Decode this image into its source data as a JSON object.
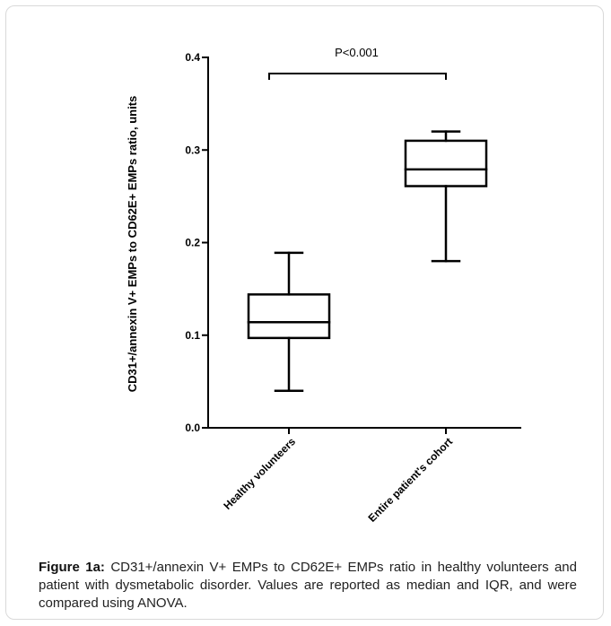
{
  "chart_data": {
    "type": "box",
    "ylabel": "CD31+/annexin V+ EMPs to CD62E+ EMPs ratio, units",
    "xlabel": "",
    "ylim": [
      0.0,
      0.4
    ],
    "yticks": [
      0.0,
      0.1,
      0.2,
      0.3,
      0.4
    ],
    "ytick_labels": [
      "0.0",
      "0.1",
      "0.2",
      "0.3",
      "0.4"
    ],
    "grid": false,
    "categories": [
      "Healthy volunteers",
      "Entire patient's cohort"
    ],
    "boxes": [
      {
        "category": "Healthy volunteers",
        "min": 0.04,
        "q1": 0.097,
        "median": 0.114,
        "q3": 0.144,
        "max": 0.189
      },
      {
        "category": "Entire patient's cohort",
        "min": 0.18,
        "q1": 0.261,
        "median": 0.279,
        "q3": 0.31,
        "max": 0.32
      }
    ],
    "annotation": "P<0.001"
  },
  "caption": {
    "label": "Figure 1a:",
    "text": " CD31+/annexin V+ EMPs to CD62E+ EMPs ratio in healthy volunteers and patient with dysmetabolic disorder. Values are reported as median and IQR, and were compared using ANOVA."
  }
}
